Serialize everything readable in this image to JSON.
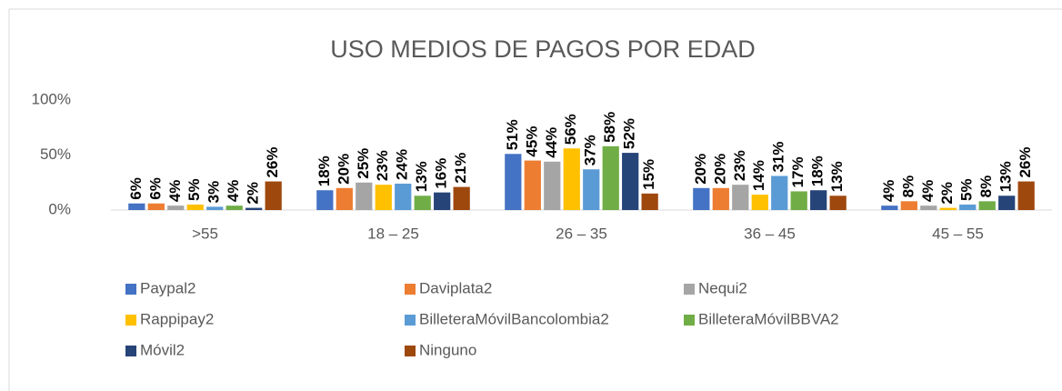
{
  "chart_data": {
    "type": "bar",
    "title": "USO MEDIOS DE PAGOS POR EDAD",
    "categories": [
      ">55",
      "18 – 25",
      "26 – 35",
      "36 – 45",
      "45 – 55"
    ],
    "ylim": [
      0,
      100
    ],
    "yticks": [
      {
        "value": 0,
        "label": "0%"
      },
      {
        "value": 50,
        "label": "50%"
      },
      {
        "value": 100,
        "label": "100%"
      }
    ],
    "grid": false,
    "legend": "bottom",
    "series": [
      {
        "name": "Paypal2",
        "color": "#4472c4",
        "values": [
          6,
          18,
          51,
          20,
          4
        ],
        "value_labels": [
          "6%",
          "18%",
          "51%",
          "20%",
          "4%"
        ]
      },
      {
        "name": "Daviplata2",
        "color": "#ed7d31",
        "values": [
          6,
          20,
          45,
          20,
          8
        ],
        "value_labels": [
          "6%",
          "20%",
          "45%",
          "20%",
          "8%"
        ]
      },
      {
        "name": "Nequi2",
        "color": "#a5a5a5",
        "values": [
          4,
          25,
          44,
          23,
          4
        ],
        "value_labels": [
          "4%",
          "25%",
          "44%",
          "23%",
          "4%"
        ]
      },
      {
        "name": "Rappipay2",
        "color": "#ffc000",
        "values": [
          5,
          23,
          56,
          14,
          2
        ],
        "value_labels": [
          "5%",
          "23%",
          "56%",
          "14%",
          "2%"
        ]
      },
      {
        "name": "BilleteraMóvilBancolombia2",
        "color": "#5b9bd5",
        "values": [
          3,
          24,
          37,
          31,
          5
        ],
        "value_labels": [
          "3%",
          "24%",
          "37%",
          "31%",
          "5%"
        ]
      },
      {
        "name": "BilleteraMóvilBBVA2",
        "color": "#70ad47",
        "values": [
          4,
          13,
          58,
          17,
          8
        ],
        "value_labels": [
          "4%",
          "13%",
          "58%",
          "17%",
          "8%"
        ]
      },
      {
        "name": "Móvil2",
        "color": "#264478",
        "values": [
          2,
          16,
          52,
          18,
          13
        ],
        "value_labels": [
          "2%",
          "16%",
          "52%",
          "18%",
          "13%"
        ]
      },
      {
        "name": "Ninguno",
        "color": "#9e480e",
        "values": [
          26,
          21,
          15,
          13,
          26
        ],
        "value_labels": [
          "26%",
          "21%",
          "15%",
          "13%",
          "26%"
        ]
      }
    ]
  }
}
